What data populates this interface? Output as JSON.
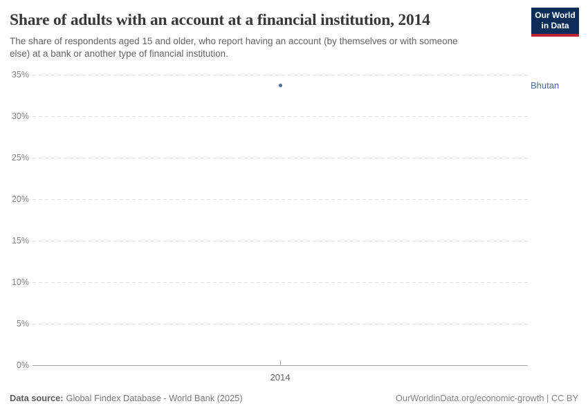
{
  "header": {
    "title": "Share of adults with an account at a financial institution, 2014",
    "subtitle": "The share of respondents aged 15 and older, who report having an account (by themselves or with someone else) at a bank or another type of financial institution.",
    "logo": {
      "line1": "Our World",
      "line2": "in Data"
    }
  },
  "chart_data": {
    "type": "scatter",
    "title": "Share of adults with an account at a financial institution, 2014",
    "x": [
      2014
    ],
    "series": [
      {
        "name": "Bhutan",
        "values": [
          33.7
        ],
        "color": "#4c6a9c"
      }
    ],
    "xlabel": "",
    "ylabel": "",
    "ylim": [
      0,
      35
    ],
    "yticks": [
      0,
      5,
      10,
      15,
      20,
      25,
      30,
      35
    ],
    "ytick_suffix": "%",
    "xticks": [
      "2014"
    ],
    "grid": true,
    "legend_position": "entity label right of plot",
    "colors": {
      "gridline": "#dcdcdc",
      "axis": "#a6a6a6",
      "tick_label": "#868686"
    }
  },
  "footer": {
    "source_label": "Data source:",
    "source_text": "Global Findex Database - World Bank (2025)",
    "license_text": "OurWorldinData.org/economic-growth | CC BY"
  }
}
